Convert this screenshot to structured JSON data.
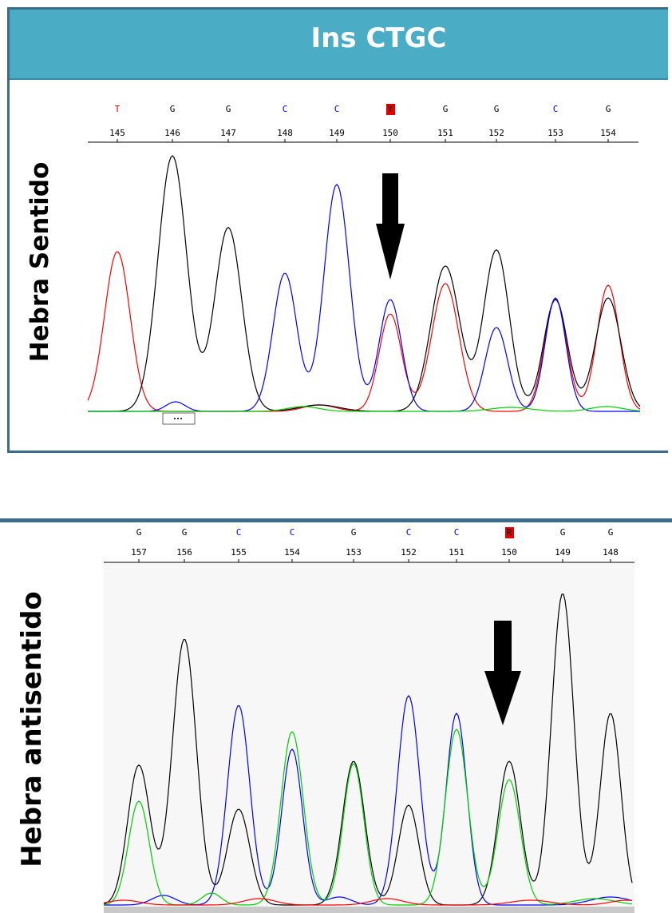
{
  "title": "Ins CTGC",
  "panels": [
    {
      "label": "Hebra Sentido",
      "bases": [
        {
          "letter": "T",
          "position": "145",
          "color": "#e00000",
          "highlight": false
        },
        {
          "letter": "G",
          "position": "146",
          "color": "#000000",
          "highlight": false
        },
        {
          "letter": "G",
          "position": "147",
          "color": "#000000",
          "highlight": false
        },
        {
          "letter": "C",
          "position": "148",
          "color": "#0000e0",
          "highlight": false
        },
        {
          "letter": "C",
          "position": "149",
          "color": "#0000e0",
          "highlight": false
        },
        {
          "letter": "Y",
          "position": "150",
          "color": "#000000",
          "highlight": true
        },
        {
          "letter": "G",
          "position": "151",
          "color": "#000000",
          "highlight": false
        },
        {
          "letter": "G",
          "position": "152",
          "color": "#000000",
          "highlight": false
        },
        {
          "letter": "C",
          "position": "153",
          "color": "#0000e0",
          "highlight": false
        },
        {
          "letter": "G",
          "position": "154",
          "color": "#000000",
          "highlight": false
        }
      ]
    },
    {
      "label": "Hebra antisentido",
      "bases": [
        {
          "letter": "G",
          "position": "157",
          "color": "#000000",
          "highlight": false
        },
        {
          "letter": "G",
          "position": "156",
          "color": "#000000",
          "highlight": false
        },
        {
          "letter": "C",
          "position": "155",
          "color": "#0000e0",
          "highlight": false
        },
        {
          "letter": "C",
          "position": "154",
          "color": "#0000e0",
          "highlight": false
        },
        {
          "letter": "G",
          "position": "153",
          "color": "#000000",
          "highlight": false
        },
        {
          "letter": "C",
          "position": "152",
          "color": "#0000e0",
          "highlight": false
        },
        {
          "letter": "C",
          "position": "151",
          "color": "#0000e0",
          "highlight": false
        },
        {
          "letter": "R",
          "position": "150",
          "color": "#000000",
          "highlight": true
        },
        {
          "letter": "G",
          "position": "149",
          "color": "#000000",
          "highlight": false
        },
        {
          "letter": "G",
          "position": "148",
          "color": "#000000",
          "highlight": false
        }
      ]
    }
  ],
  "trace_colors": {
    "A": "#00d000",
    "C": "#0000ff",
    "G": "#000000",
    "T": "#ff0000"
  },
  "highlight_color": "#e00000"
}
